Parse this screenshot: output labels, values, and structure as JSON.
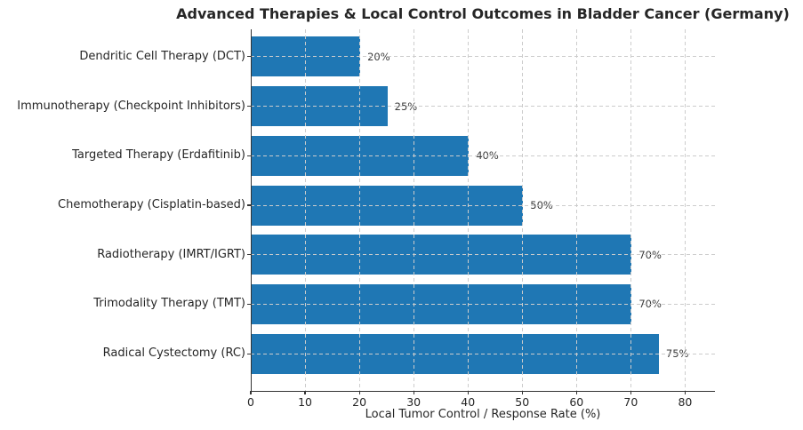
{
  "chart_data": {
    "type": "bar",
    "orientation": "horizontal",
    "title": "Advanced Therapies & Local Control Outcomes in Bladder Cancer (Germany)",
    "xlabel": "Local Tumor Control / Response Rate (%)",
    "ylabel": "",
    "categories": [
      "Dendritic Cell Therapy (DCT)",
      "Immunotherapy (Checkpoint Inhibitors)",
      "Targeted Therapy (Erdafitinib)",
      "Chemotherapy (Cisplatin-based)",
      "Radiotherapy (IMRT/IGRT)",
      "Trimodality Therapy (TMT)",
      "Radical Cystectomy (RC)"
    ],
    "values": [
      20,
      25,
      40,
      50,
      70,
      70,
      75
    ],
    "value_labels": [
      "20%",
      "25%",
      "40%",
      "50%",
      "70%",
      "70%",
      "75%"
    ],
    "xticks": [
      0,
      10,
      20,
      30,
      40,
      50,
      60,
      70,
      80
    ],
    "xlim": [
      0,
      85.5
    ],
    "grid": true,
    "grid_style": "dashed",
    "grid_over_bars": true,
    "legend": false,
    "bar_color": "#1f77b4",
    "grid_color": "#cccccc",
    "axis_color": "#333333",
    "text_color": "#262626",
    "value_label_color": "#3c3c3c",
    "background_color": "#ffffff"
  }
}
